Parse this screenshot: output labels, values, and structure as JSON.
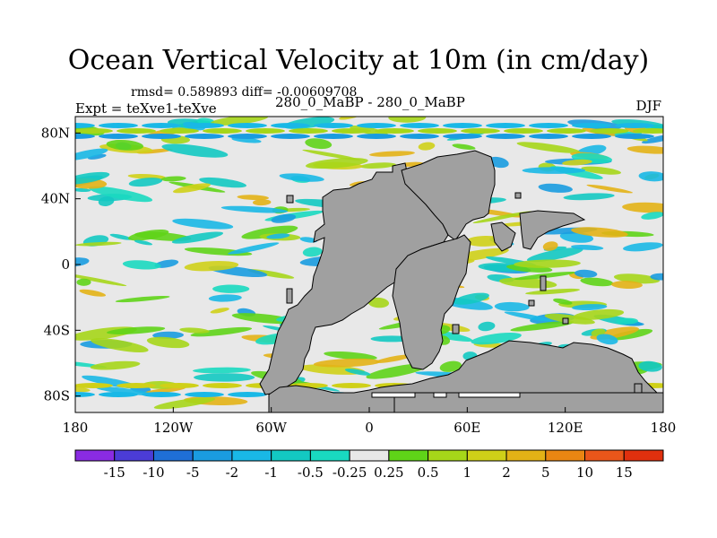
{
  "chart_data": {
    "type": "heatmap",
    "title": "Ocean Vertical Velocity at 10m (in cm/day)",
    "stats_label": "rmsd= 0.589893 diff= -0.00609708",
    "experiment_label": "Expt = teXve1-teXve",
    "case_label": "280_0_MaBP - 280_0_MaBP",
    "season_label": "DJF",
    "x_ticks": [
      "180",
      "120W",
      "60W",
      "0",
      "60E",
      "120E",
      "180"
    ],
    "y_ticks": [
      "80N",
      "40N",
      "0",
      "40S",
      "80S"
    ],
    "xlim": [
      -180,
      180
    ],
    "ylim": [
      -90,
      90
    ],
    "colorbar": {
      "labels": [
        "-15",
        "-10",
        "-5",
        "-2",
        "-1",
        "-0.5",
        "-0.25",
        "0.25",
        "0.5",
        "1",
        "2",
        "5",
        "10",
        "15"
      ],
      "colors": [
        "#8a2be2",
        "#4b3cd6",
        "#1f6fd6",
        "#1a9ce0",
        "#19b8e6",
        "#13c9c2",
        "#19d9c0",
        "#e8e8e8",
        "#5fd418",
        "#a6d619",
        "#cfd018",
        "#e3b216",
        "#e98612",
        "#e9561a",
        "#e0300e"
      ]
    },
    "land_color": "#a0a0a0",
    "ocean_neutral_color": "#e8e8e8"
  }
}
